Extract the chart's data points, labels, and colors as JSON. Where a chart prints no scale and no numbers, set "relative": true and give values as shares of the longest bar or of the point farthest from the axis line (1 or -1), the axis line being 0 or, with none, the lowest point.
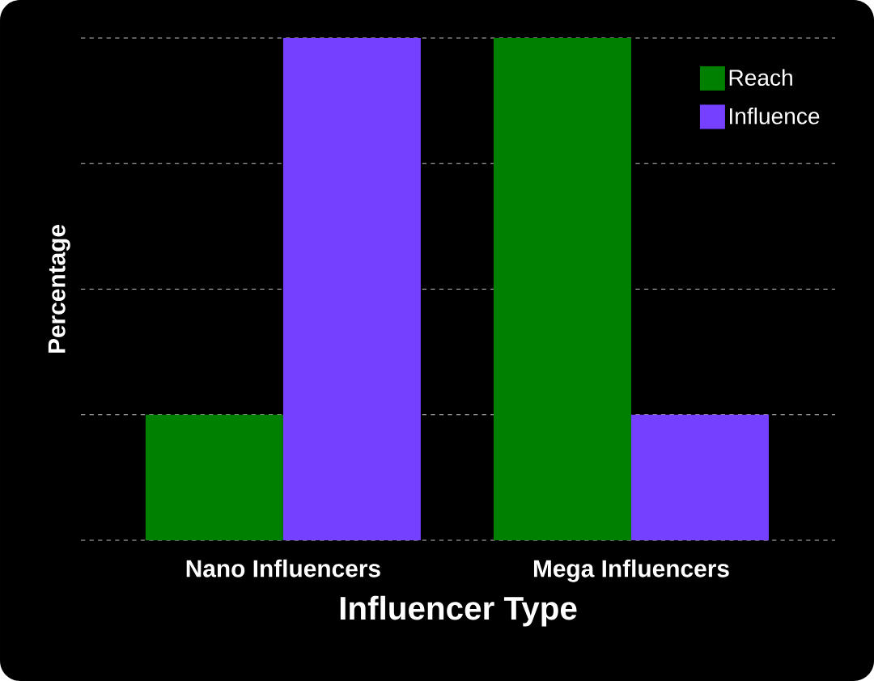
{
  "chart_data": {
    "type": "bar",
    "xlabel": "Influencer Type",
    "ylabel": "Percentage",
    "relative": true,
    "categories": [
      "Nano Influencers",
      "Mega Influencers"
    ],
    "series": [
      {
        "name": "Reach",
        "color": "#008000",
        "values": [
          0.25,
          1
        ]
      },
      {
        "name": "Influence",
        "color": "#7540ff",
        "values": [
          1,
          0.25
        ]
      }
    ],
    "grid": "y",
    "legend": "top right"
  }
}
